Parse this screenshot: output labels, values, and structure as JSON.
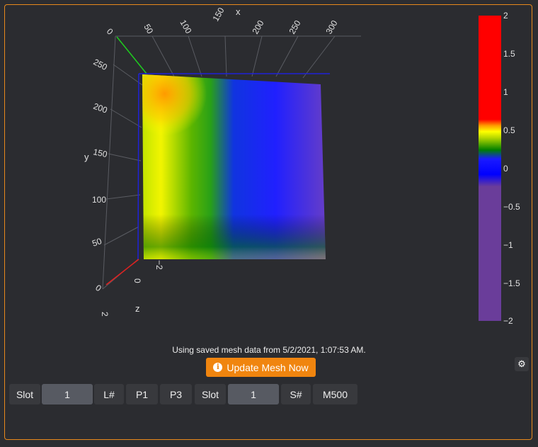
{
  "plot": {
    "x_axis_label": "x",
    "y_axis_label": "y",
    "z_axis_label": "z",
    "x_ticks": [
      "0",
      "50",
      "100",
      "150",
      "200",
      "250",
      "300"
    ],
    "y_ticks": [
      "0",
      "50",
      "100",
      "150",
      "200",
      "250"
    ],
    "z_ticks": [
      "2",
      "0",
      "−2"
    ],
    "colorbar_ticks": [
      "2",
      "1.5",
      "1",
      "0.5",
      "0",
      "−0.5",
      "−1",
      "−1.5",
      "−2"
    ],
    "colorbar_range": [
      -2,
      2
    ],
    "colorscale": [
      "#6a3d9a",
      "#0000ff",
      "#008000",
      "#ffff00",
      "#ff0000"
    ]
  },
  "status_text": "Using saved mesh data from 5/2/2021, 1:07:53 AM.",
  "update_button_label": "Update Mesh Now",
  "settings_icon": "gear-icon",
  "toolbar": {
    "slot_label_1": "Slot",
    "slot_value_1": "1",
    "l_hash": "L#",
    "p1": "P1",
    "p3": "P3",
    "slot_label_2": "Slot",
    "slot_value_2": "1",
    "s_hash": "S#",
    "m500": "M500"
  }
}
